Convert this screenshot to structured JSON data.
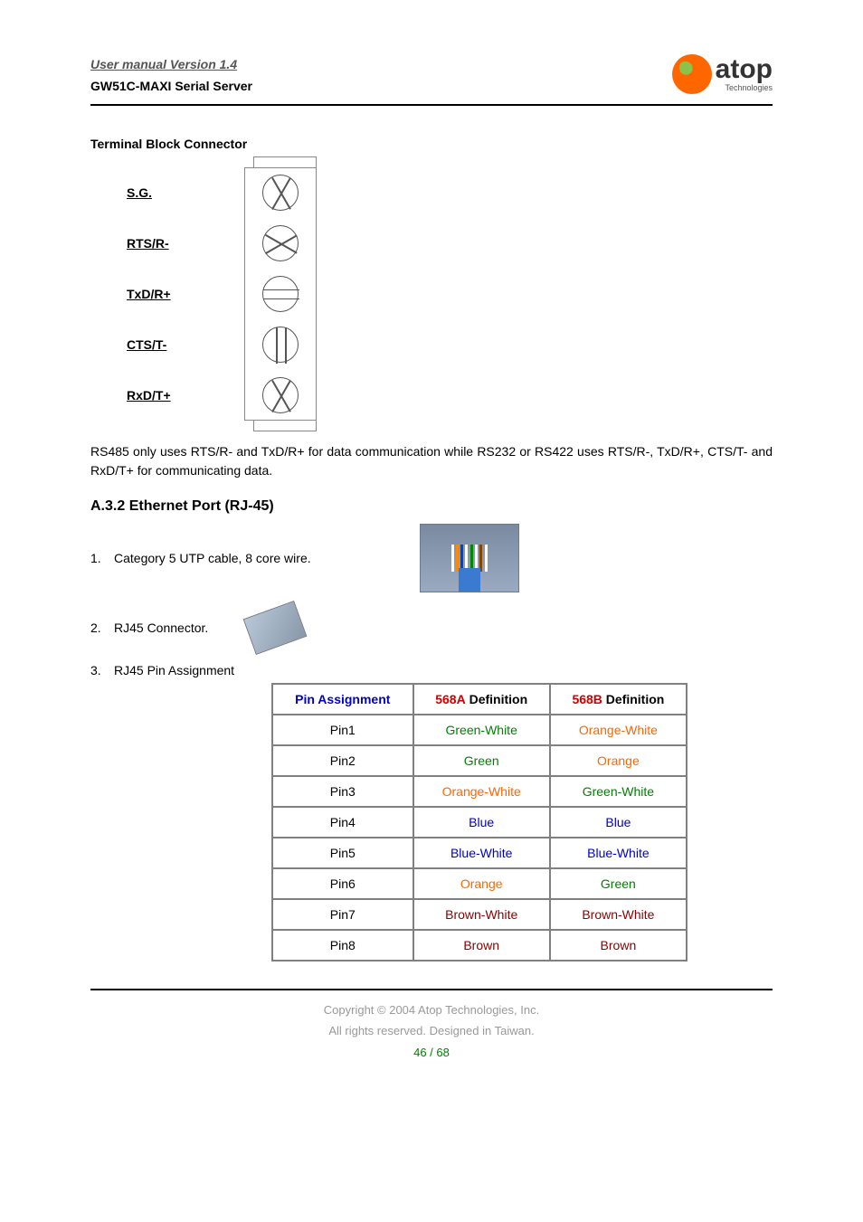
{
  "header": {
    "manual_version": "User manual Version 1.4",
    "product": "GW51C-MAXI Serial Server",
    "logo_text": "atop",
    "logo_sub": "Technologies"
  },
  "terminal_block": {
    "title": "Terminal Block Connector",
    "pins": [
      {
        "label": "S.G.",
        "screw_style": "screw-diag1"
      },
      {
        "label": "RTS/R-",
        "screw_style": "screw-diag2"
      },
      {
        "label": "TxD/R+",
        "screw_style": "screw-horiz"
      },
      {
        "label": "CTS/T-",
        "screw_style": "screw-vert"
      },
      {
        "label": "RxD/T+",
        "screw_style": "screw-diag1"
      }
    ],
    "note": "RS485 only uses RTS/R- and TxD/R+ for data communication while RS232 or RS422 uses RTS/R-, TxD/R+, CTS/T- and RxD/T+ for communicating data."
  },
  "ethernet": {
    "title": "A.3.2 Ethernet Port (RJ-45)",
    "items": [
      {
        "num": "1.",
        "text": "Category 5 UTP cable, 8 core wire."
      },
      {
        "num": "2.",
        "text": "RJ45 Connector."
      },
      {
        "num": "3.",
        "text": "RJ45 Pin Assignment"
      }
    ],
    "utp_wire_colors": [
      "#ffffff",
      "#ff8800",
      "#0044cc",
      "#ffffff",
      "#008800",
      "#ffffff",
      "#884400",
      "#ffffff"
    ]
  },
  "pin_table": {
    "headers": {
      "pin": "Pin Assignment",
      "col_a_bold": "568A",
      "col_a_rest": " Definition",
      "col_b_bold": "568B",
      "col_b_rest": " Definition"
    },
    "rows": [
      {
        "pin": "Pin1",
        "a": "Green-White",
        "a_cls": "green",
        "b": "Orange-White",
        "b_cls": "orange"
      },
      {
        "pin": "Pin2",
        "a": "Green",
        "a_cls": "green",
        "b": "Orange",
        "b_cls": "orange"
      },
      {
        "pin": "Pin3",
        "a": "Orange-White",
        "a_cls": "orange",
        "b": "Green-White",
        "b_cls": "green"
      },
      {
        "pin": "Pin4",
        "a": "Blue",
        "a_cls": "blue",
        "b": "Blue",
        "b_cls": "blue"
      },
      {
        "pin": "Pin5",
        "a": "Blue-White",
        "a_cls": "blue",
        "b": "Blue-White",
        "b_cls": "blue"
      },
      {
        "pin": "Pin6",
        "a": "Orange",
        "a_cls": "orange",
        "b": "Green",
        "b_cls": "green"
      },
      {
        "pin": "Pin7",
        "a": "Brown-White",
        "a_cls": "brown",
        "b": "Brown-White",
        "b_cls": "brown"
      },
      {
        "pin": "Pin8",
        "a": "Brown",
        "a_cls": "brown",
        "b": "Brown",
        "b_cls": "brown"
      }
    ],
    "colors": {
      "green": "#008000",
      "orange": "#ff6600",
      "blue": "#0000cc",
      "brown": "#8b0000",
      "header_pin": "#0000cc",
      "header_red": "#cc0000"
    }
  },
  "footer": {
    "copyright": "Copyright © 2004 Atop Technologies, Inc.",
    "rights": "All rights reserved. Designed in Taiwan.",
    "page": "46 / 68"
  }
}
